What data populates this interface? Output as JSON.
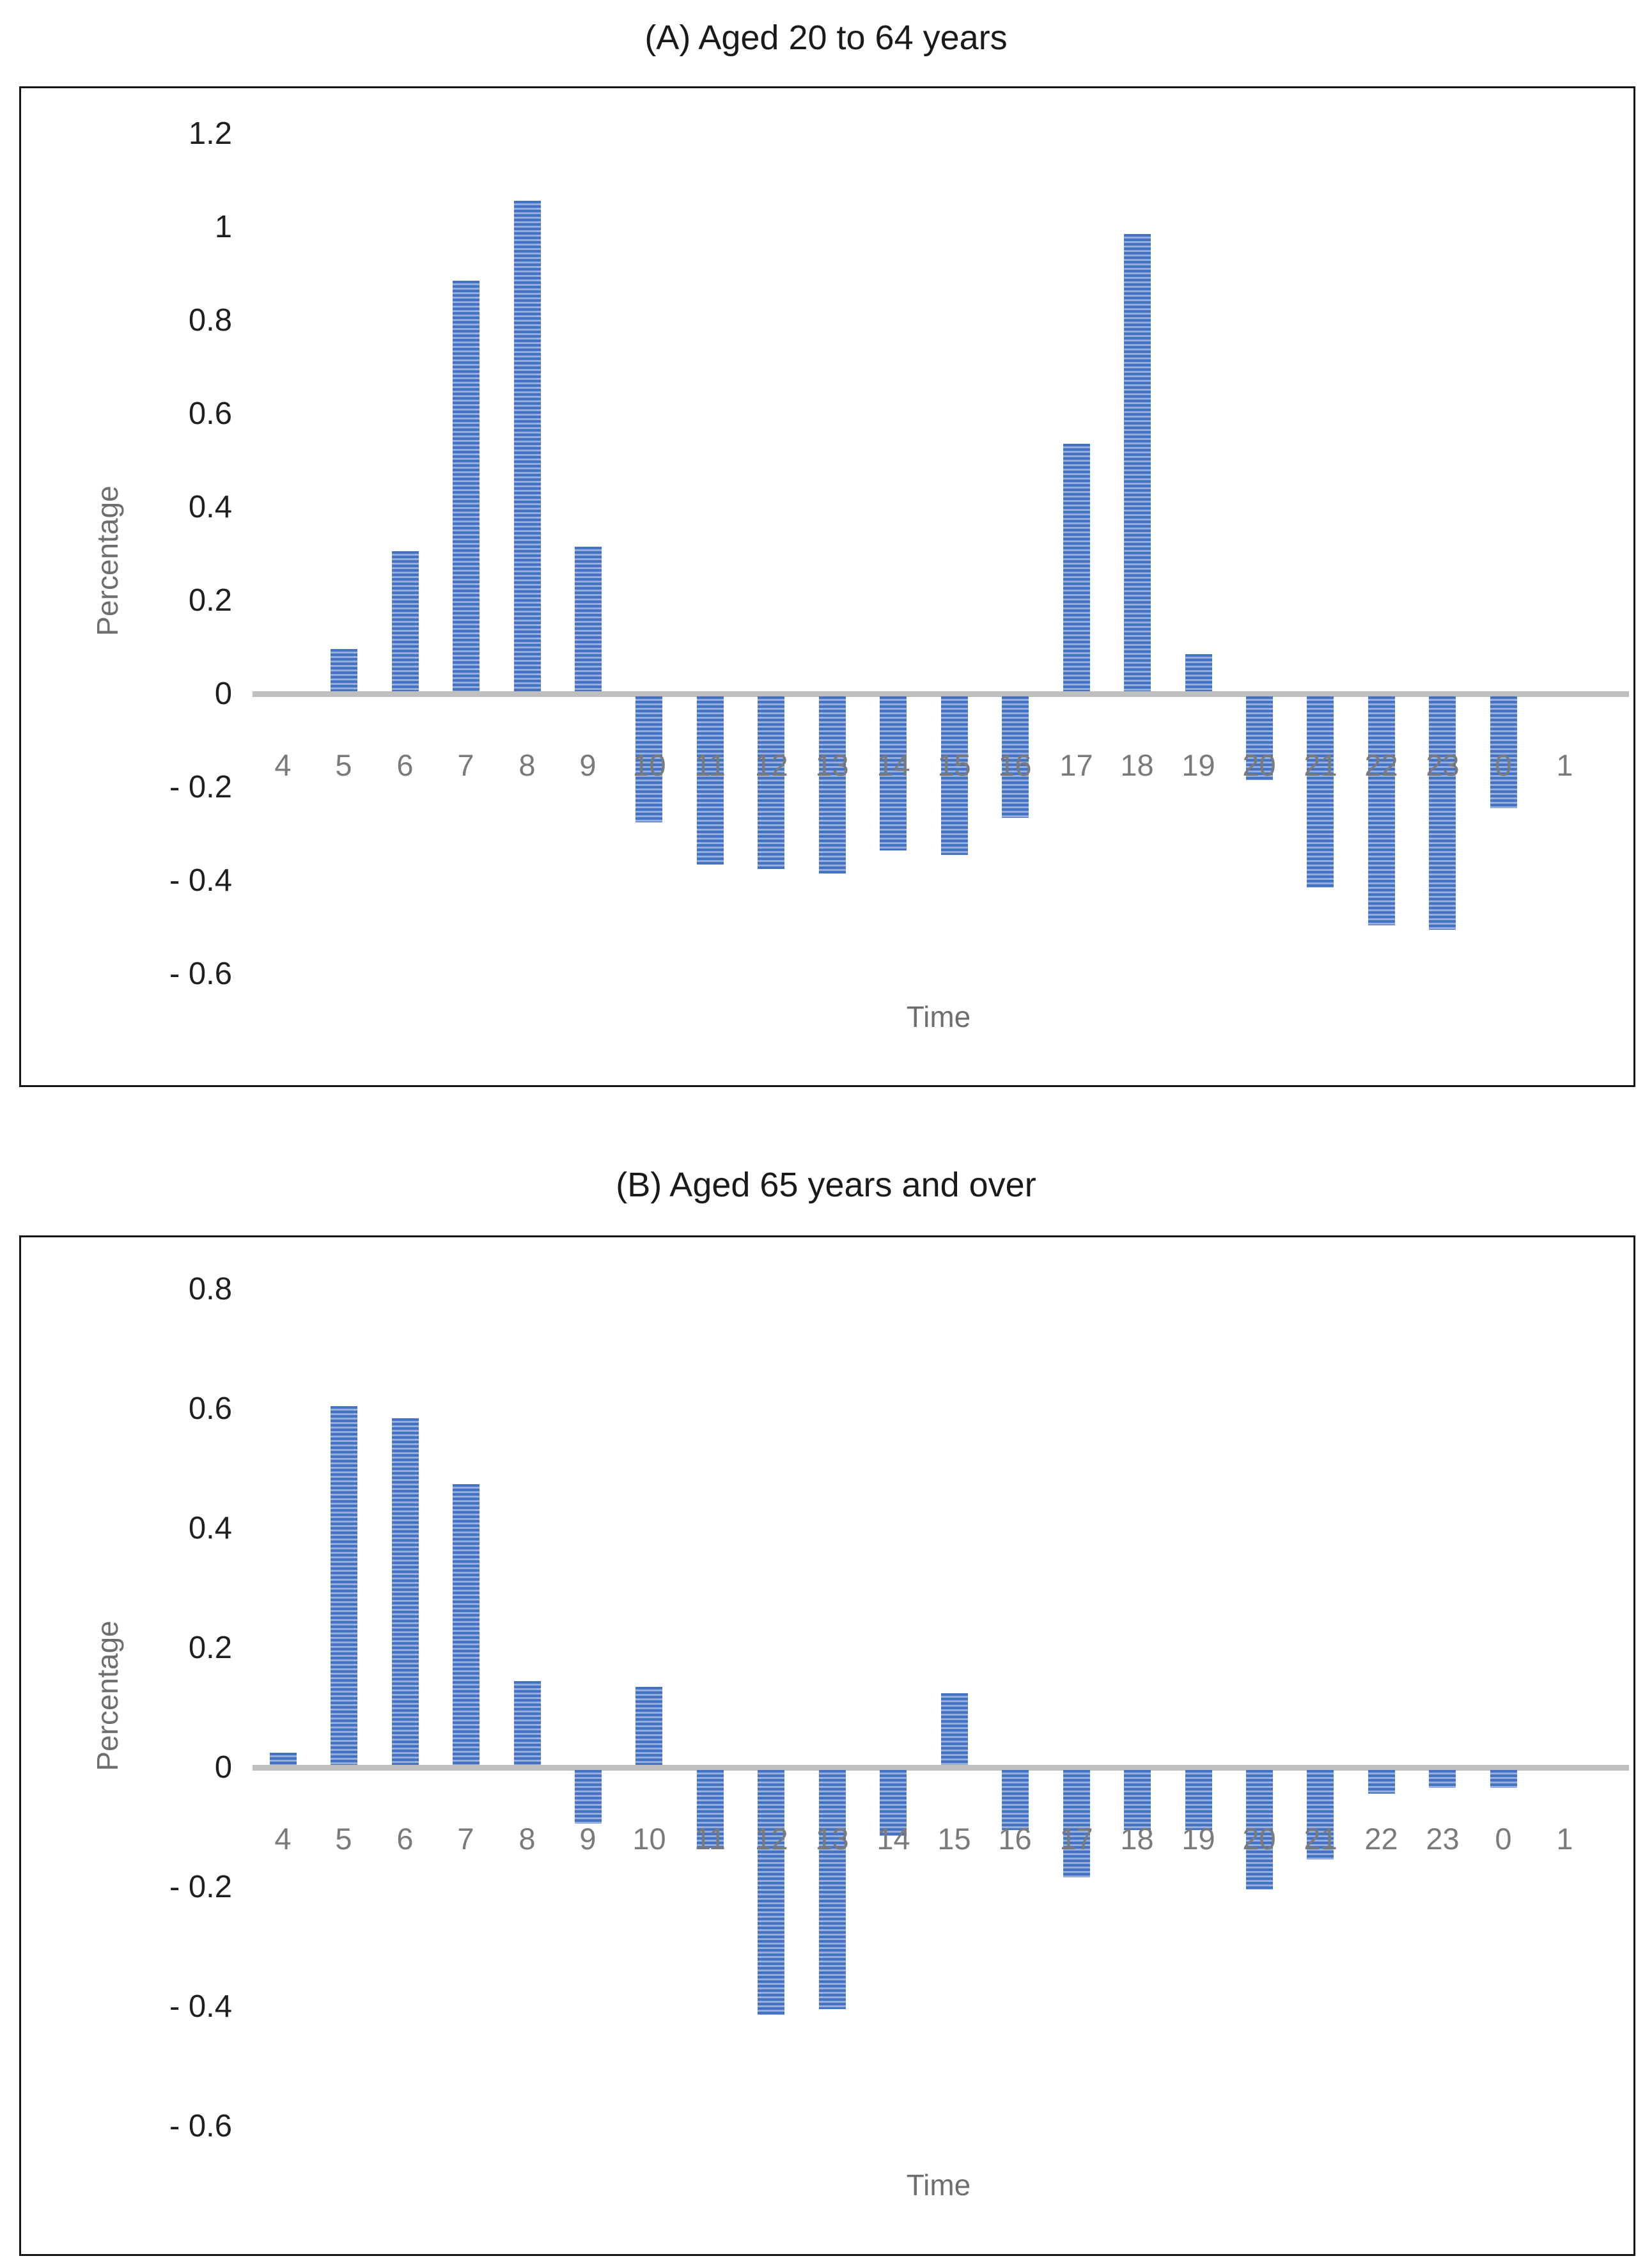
{
  "page": {
    "background": "#ffffff"
  },
  "chart_data": [
    {
      "type": "bar",
      "title": "(A) Aged 20 to 64 years",
      "xlabel": "Time",
      "ylabel": "Percentage",
      "categories": [
        "4",
        "5",
        "6",
        "7",
        "8",
        "9",
        "10",
        "11",
        "12",
        "13",
        "14",
        "15",
        "16",
        "17",
        "18",
        "19",
        "20",
        "21",
        "22",
        "23",
        "0",
        "1"
      ],
      "values": [
        0,
        0.09,
        0.3,
        0.88,
        1.05,
        0.31,
        -0.27,
        -0.36,
        -0.37,
        -0.38,
        -0.33,
        -0.34,
        -0.26,
        0.53,
        0.98,
        0.08,
        -0.18,
        -0.41,
        -0.49,
        -0.5,
        -0.24,
        0
      ],
      "yticks": [
        {
          "label": "1.2",
          "value": 1.2
        },
        {
          "label": "1",
          "value": 1.0
        },
        {
          "label": "0.8",
          "value": 0.8
        },
        {
          "label": "0.6",
          "value": 0.6
        },
        {
          "label": "0.4",
          "value": 0.4
        },
        {
          "label": "0.2",
          "value": 0.2
        },
        {
          "label": "0",
          "value": 0
        },
        {
          "label": "- 0.2",
          "value": -0.2
        },
        {
          "label": "- 0.4",
          "value": -0.4
        },
        {
          "label": "- 0.6",
          "value": -0.6
        }
      ],
      "ylim": [
        -0.6,
        1.2
      ],
      "grid": "off",
      "legend": "none",
      "bar_color_dark": "#4472C4",
      "bar_color_light": "#95AEDD",
      "axis_line_color": "#BFBFBF",
      "ytick_color": "#1f1f1f",
      "xtick_color": "#7a7a7a",
      "axis_title_color": "#6e6e6e"
    },
    {
      "type": "bar",
      "title": "(B) Aged 65 years and over",
      "xlabel": "Time",
      "ylabel": "Percentage",
      "categories": [
        "4",
        "5",
        "6",
        "7",
        "8",
        "9",
        "10",
        "11",
        "12",
        "13",
        "14",
        "15",
        "16",
        "17",
        "18",
        "19",
        "20",
        "21",
        "22",
        "23",
        "0",
        "1"
      ],
      "values": [
        0.02,
        0.6,
        0.58,
        0.47,
        0.14,
        -0.09,
        0.13,
        -0.13,
        -0.41,
        -0.4,
        -0.11,
        0.12,
        -0.1,
        -0.18,
        -0.1,
        -0.1,
        -0.2,
        -0.15,
        -0.04,
        -0.03,
        -0.03,
        0
      ],
      "yticks": [
        {
          "label": "0.8",
          "value": 0.8
        },
        {
          "label": "0.6",
          "value": 0.6
        },
        {
          "label": "0.4",
          "value": 0.4
        },
        {
          "label": "0.2",
          "value": 0.2
        },
        {
          "label": "0",
          "value": 0
        },
        {
          "label": "- 0.2",
          "value": -0.2
        },
        {
          "label": "- 0.4",
          "value": -0.4
        },
        {
          "label": "- 0.6",
          "value": -0.6
        }
      ],
      "ylim": [
        -0.6,
        0.8
      ],
      "grid": "off",
      "legend": "none",
      "bar_color_dark": "#4472C4",
      "bar_color_light": "#95AEDD",
      "axis_line_color": "#BFBFBF",
      "ytick_color": "#1f1f1f",
      "xtick_color": "#7a7a7a",
      "axis_title_color": "#6e6e6e"
    }
  ]
}
